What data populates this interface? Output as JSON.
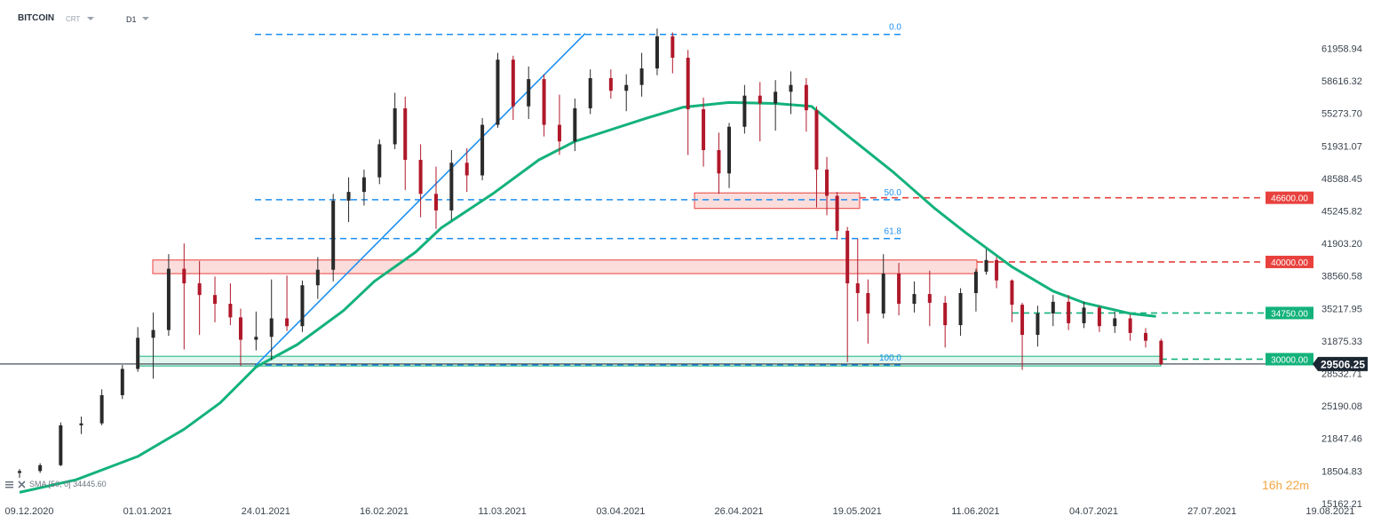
{
  "header": {
    "symbol": "BITCOIN",
    "type": "CRT",
    "interval": "D1"
  },
  "sma_legend": {
    "name": "SMA",
    "params": "[50, 0]",
    "value": "34445.60"
  },
  "countdown": {
    "hours": "16",
    "hours_unit": "h",
    "minutes": "22",
    "minutes_unit": "m"
  },
  "colors": {
    "bull": "#2a2a2a",
    "bear": "#b0182a",
    "sma": "#13b27b",
    "fib": "#1c8ff0",
    "resistance": "#e8413d",
    "support": "#13b27b",
    "current": "#1c2733"
  },
  "chart_data": {
    "type": "candlestick",
    "y_axis_ticks": [
      "61958.94",
      "58616.32",
      "55273.70",
      "51931.07",
      "48588.45",
      "45245.82",
      "41903.20",
      "38560.58",
      "35217.95",
      "31875.33",
      "28532.71",
      "25190.08",
      "21847.46",
      "18504.83",
      "15162.21"
    ],
    "x_axis_ticks": [
      "09.12.2020",
      "01.01.2021",
      "24.01.2021",
      "16.02.2021",
      "11.03.2021",
      "03.04.2021",
      "26.04.2021",
      "19.05.2021",
      "11.06.2021",
      "04.07.2021",
      "27.07.2021",
      "19.08.2021"
    ],
    "ylim": [
      15162.21,
      63500
    ],
    "current_price": "29506.25",
    "price_tags": [
      {
        "value": 46600,
        "label": "46600.00",
        "color": "#e8413d"
      },
      {
        "value": 40000,
        "label": "40000.00",
        "color": "#e8413d"
      },
      {
        "value": 34750,
        "label": "34750.00",
        "color": "#13b27b"
      },
      {
        "value": 30000,
        "label": "30000.00",
        "color": "#13b27b"
      }
    ],
    "fibonacci": [
      {
        "label": "0.0",
        "value": 63400
      },
      {
        "label": "50.0",
        "value": 46400
      },
      {
        "label": "61.8",
        "value": 42400
      },
      {
        "label": "100.0",
        "value": 29400
      }
    ],
    "zones": [
      {
        "name": "resistance-zone-40000",
        "from": 38800,
        "to": 40200
      },
      {
        "name": "resistance-zone-46600",
        "from": 45500,
        "to": 47100
      },
      {
        "name": "support-zone-30000",
        "from": 29300,
        "to": 30300
      }
    ],
    "trendline": {
      "from": [
        "24.01.2021",
        29400
      ],
      "to": [
        "29.03.2021",
        63500
      ]
    },
    "sma": [
      [
        "09.12.2020",
        16300
      ],
      [
        "20.12.2020",
        17600
      ],
      [
        "01.01.2021",
        20000
      ],
      [
        "10.01.2021",
        22800
      ],
      [
        "17.01.2021",
        25500
      ],
      [
        "24.01.2021",
        29200
      ],
      [
        "01.02.2021",
        31500
      ],
      [
        "10.02.2021",
        35000
      ],
      [
        "16.02.2021",
        38000
      ],
      [
        "24.02.2021",
        41000
      ],
      [
        "01.03.2021",
        43500
      ],
      [
        "11.03.2021",
        47000
      ],
      [
        "20.03.2021",
        50500
      ],
      [
        "27.03.2021",
        52400
      ],
      [
        "03.04.2021",
        53600
      ],
      [
        "10.04.2021",
        54800
      ],
      [
        "17.04.2021",
        55900
      ],
      [
        "26.04.2021",
        56400
      ],
      [
        "05.05.2021",
        56300
      ],
      [
        "12.05.2021",
        56000
      ],
      [
        "19.05.2021",
        53000
      ],
      [
        "28.05.2021",
        49200
      ],
      [
        "05.06.2021",
        45500
      ],
      [
        "11.06.2021",
        43000
      ],
      [
        "20.06.2021",
        39500
      ],
      [
        "28.06.2021",
        37000
      ],
      [
        "04.07.2021",
        35800
      ],
      [
        "13.07.2021",
        34700
      ],
      [
        "18.07.2021",
        34400
      ]
    ],
    "candles": [
      {
        "d": "09.12.2020",
        "o": 18300,
        "h": 18700,
        "l": 17800,
        "c": 18500
      },
      {
        "d": "13.12.2020",
        "o": 18500,
        "h": 19300,
        "l": 18300,
        "c": 19100
      },
      {
        "d": "17.12.2020",
        "o": 19100,
        "h": 23500,
        "l": 19000,
        "c": 23200
      },
      {
        "d": "21.12.2020",
        "o": 23200,
        "h": 24100,
        "l": 22300,
        "c": 23400
      },
      {
        "d": "25.12.2020",
        "o": 23400,
        "h": 26900,
        "l": 23200,
        "c": 26300
      },
      {
        "d": "29.12.2020",
        "o": 26300,
        "h": 29400,
        "l": 25900,
        "c": 29000
      },
      {
        "d": "01.01.2021",
        "o": 29000,
        "h": 33300,
        "l": 28700,
        "c": 32200
      },
      {
        "d": "04.01.2021",
        "o": 32200,
        "h": 34800,
        "l": 28000,
        "c": 33000
      },
      {
        "d": "07.01.2021",
        "o": 33000,
        "h": 40800,
        "l": 32400,
        "c": 39300
      },
      {
        "d": "10.01.2021",
        "o": 39300,
        "h": 41900,
        "l": 31000,
        "c": 37800
      },
      {
        "d": "13.01.2021",
        "o": 37800,
        "h": 40100,
        "l": 32500,
        "c": 36600
      },
      {
        "d": "16.01.2021",
        "o": 36600,
        "h": 38500,
        "l": 33800,
        "c": 35700
      },
      {
        "d": "19.01.2021",
        "o": 35700,
        "h": 37800,
        "l": 33500,
        "c": 34300
      },
      {
        "d": "21.01.2021",
        "o": 34300,
        "h": 35200,
        "l": 29300,
        "c": 32000
      },
      {
        "d": "24.01.2021",
        "o": 32000,
        "h": 34900,
        "l": 30900,
        "c": 32300
      },
      {
        "d": "27.01.2021",
        "o": 32300,
        "h": 38200,
        "l": 29900,
        "c": 34200
      },
      {
        "d": "30.01.2021",
        "o": 34200,
        "h": 38600,
        "l": 32900,
        "c": 33400
      },
      {
        "d": "02.02.2021",
        "o": 33400,
        "h": 38100,
        "l": 32800,
        "c": 37600
      },
      {
        "d": "05.02.2021",
        "o": 37600,
        "h": 40500,
        "l": 36200,
        "c": 39200
      },
      {
        "d": "08.02.2021",
        "o": 39200,
        "h": 47000,
        "l": 38000,
        "c": 46300
      },
      {
        "d": "11.02.2021",
        "o": 46300,
        "h": 48700,
        "l": 44100,
        "c": 47200
      },
      {
        "d": "14.02.2021",
        "o": 47200,
        "h": 49500,
        "l": 45800,
        "c": 48700
      },
      {
        "d": "17.02.2021",
        "o": 48700,
        "h": 52600,
        "l": 48000,
        "c": 52100
      },
      {
        "d": "20.02.2021",
        "o": 52100,
        "h": 57400,
        "l": 51600,
        "c": 55800
      },
      {
        "d": "22.02.2021",
        "o": 55800,
        "h": 57000,
        "l": 47400,
        "c": 50500
      },
      {
        "d": "25.02.2021",
        "o": 50500,
        "h": 52100,
        "l": 44600,
        "c": 47000
      },
      {
        "d": "28.02.2021",
        "o": 47000,
        "h": 49800,
        "l": 43400,
        "c": 45300
      },
      {
        "d": "03.03.2021",
        "o": 45300,
        "h": 51500,
        "l": 44300,
        "c": 50200
      },
      {
        "d": "06.03.2021",
        "o": 50200,
        "h": 51700,
        "l": 47200,
        "c": 48900
      },
      {
        "d": "09.03.2021",
        "o": 48900,
        "h": 54800,
        "l": 48400,
        "c": 54100
      },
      {
        "d": "12.03.2021",
        "o": 54100,
        "h": 61500,
        "l": 53800,
        "c": 60800
      },
      {
        "d": "15.03.2021",
        "o": 60800,
        "h": 61200,
        "l": 54600,
        "c": 56000
      },
      {
        "d": "18.03.2021",
        "o": 56000,
        "h": 60100,
        "l": 54700,
        "c": 58800
      },
      {
        "d": "21.03.2021",
        "o": 58800,
        "h": 59300,
        "l": 52900,
        "c": 54100
      },
      {
        "d": "24.03.2021",
        "o": 54100,
        "h": 57200,
        "l": 51000,
        "c": 52400
      },
      {
        "d": "27.03.2021",
        "o": 52400,
        "h": 56800,
        "l": 51400,
        "c": 55800
      },
      {
        "d": "30.03.2021",
        "o": 55800,
        "h": 59800,
        "l": 55200,
        "c": 58900
      },
      {
        "d": "03.04.2021",
        "o": 58900,
        "h": 59800,
        "l": 56800,
        "c": 57600
      },
      {
        "d": "06.04.2021",
        "o": 57600,
        "h": 59300,
        "l": 55500,
        "c": 58200
      },
      {
        "d": "09.04.2021",
        "o": 58200,
        "h": 61500,
        "l": 57000,
        "c": 59900
      },
      {
        "d": "12.04.2021",
        "o": 59900,
        "h": 64000,
        "l": 59200,
        "c": 63200
      },
      {
        "d": "15.04.2021",
        "o": 63200,
        "h": 63600,
        "l": 59400,
        "c": 61000
      },
      {
        "d": "18.04.2021",
        "o": 61000,
        "h": 61800,
        "l": 51000,
        "c": 55700
      },
      {
        "d": "21.04.2021",
        "o": 55700,
        "h": 56900,
        "l": 49800,
        "c": 51500
      },
      {
        "d": "24.04.2021",
        "o": 51500,
        "h": 53300,
        "l": 47000,
        "c": 49100
      },
      {
        "d": "26.04.2021",
        "o": 49100,
        "h": 54300,
        "l": 47600,
        "c": 53900
      },
      {
        "d": "29.04.2021",
        "o": 53900,
        "h": 58200,
        "l": 53200,
        "c": 57100
      },
      {
        "d": "02.05.2021",
        "o": 57100,
        "h": 58500,
        "l": 52400,
        "c": 56300
      },
      {
        "d": "05.05.2021",
        "o": 56300,
        "h": 58700,
        "l": 53500,
        "c": 57500
      },
      {
        "d": "08.05.2021",
        "o": 57500,
        "h": 59600,
        "l": 55200,
        "c": 58200
      },
      {
        "d": "11.05.2021",
        "o": 58200,
        "h": 58900,
        "l": 53400,
        "c": 55600
      },
      {
        "d": "13.05.2021",
        "o": 55600,
        "h": 56000,
        "l": 45600,
        "c": 49500
      },
      {
        "d": "15.05.2021",
        "o": 49500,
        "h": 50800,
        "l": 44800,
        "c": 46800
      },
      {
        "d": "17.05.2021",
        "o": 46800,
        "h": 47200,
        "l": 42300,
        "c": 43200
      },
      {
        "d": "19.05.2021",
        "o": 43200,
        "h": 43600,
        "l": 29700,
        "c": 37800
      },
      {
        "d": "21.05.2021",
        "o": 37800,
        "h": 42400,
        "l": 33900,
        "c": 36800
      },
      {
        "d": "23.05.2021",
        "o": 36800,
        "h": 38200,
        "l": 31600,
        "c": 34700
      },
      {
        "d": "26.05.2021",
        "o": 34700,
        "h": 40800,
        "l": 34200,
        "c": 38800
      },
      {
        "d": "29.05.2021",
        "o": 38800,
        "h": 39900,
        "l": 34500,
        "c": 35700
      },
      {
        "d": "01.06.2021",
        "o": 35700,
        "h": 38000,
        "l": 34800,
        "c": 36700
      },
      {
        "d": "04.06.2021",
        "o": 36700,
        "h": 39100,
        "l": 33400,
        "c": 35800
      },
      {
        "d": "07.06.2021",
        "o": 35800,
        "h": 36500,
        "l": 31200,
        "c": 33500
      },
      {
        "d": "10.06.2021",
        "o": 33500,
        "h": 37300,
        "l": 32400,
        "c": 36800
      },
      {
        "d": "13.06.2021",
        "o": 36800,
        "h": 39300,
        "l": 34900,
        "c": 39000
      },
      {
        "d": "15.06.2021",
        "o": 39000,
        "h": 41300,
        "l": 38700,
        "c": 40200
      },
      {
        "d": "17.06.2021",
        "o": 40200,
        "h": 40500,
        "l": 37300,
        "c": 38100
      },
      {
        "d": "20.06.2021",
        "o": 38100,
        "h": 38200,
        "l": 33800,
        "c": 35600
      },
      {
        "d": "22.06.2021",
        "o": 35600,
        "h": 35800,
        "l": 28900,
        "c": 32500
      },
      {
        "d": "25.06.2021",
        "o": 32500,
        "h": 35500,
        "l": 31300,
        "c": 34700
      },
      {
        "d": "28.06.2021",
        "o": 34700,
        "h": 36600,
        "l": 33400,
        "c": 35900
      },
      {
        "d": "01.07.2021",
        "o": 35900,
        "h": 36600,
        "l": 33000,
        "c": 33700
      },
      {
        "d": "04.07.2021",
        "o": 33700,
        "h": 35900,
        "l": 33200,
        "c": 35300
      },
      {
        "d": "07.07.2021",
        "o": 35300,
        "h": 35500,
        "l": 32800,
        "c": 33400
      },
      {
        "d": "10.07.2021",
        "o": 33400,
        "h": 34900,
        "l": 32700,
        "c": 34200
      },
      {
        "d": "13.07.2021",
        "o": 34200,
        "h": 34600,
        "l": 31900,
        "c": 32700
      },
      {
        "d": "16.07.2021",
        "o": 32700,
        "h": 33200,
        "l": 31200,
        "c": 31900
      },
      {
        "d": "19.07.2021",
        "o": 31900,
        "h": 32100,
        "l": 29400,
        "c": 29500
      }
    ]
  }
}
